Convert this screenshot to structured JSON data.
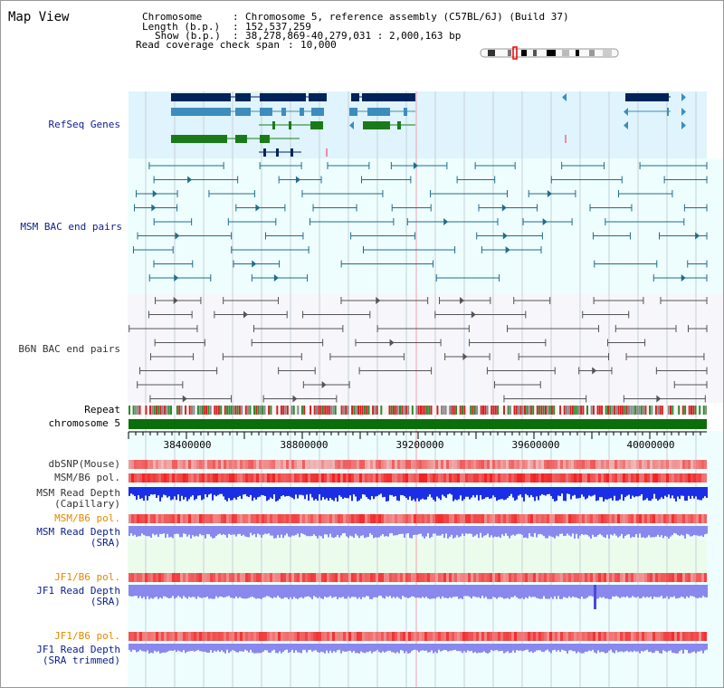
{
  "header": {
    "title": "Map View",
    "chromosome_label": "Chromosome",
    "chromosome_value": "Chromosome 5, reference assembly (C57BL/6J) (Build 37)",
    "length_label": "Length (b.p.)",
    "length_value": "152,537,259",
    "show_label": "Show (b.p.)",
    "show_value": "38,278,869-40,279,031 : 2,000,163 bp",
    "coverage_label": "Read coverage check span",
    "coverage_value": "10,000"
  },
  "tracks": {
    "refseq": "RefSeq Genes",
    "msm_bac": "MSM BAC end pairs",
    "b6n_bac": "B6N BAC end pairs",
    "repeat": "Repeat",
    "chromosome": "chromosome 5",
    "dbsnp": "dbSNP(Mouse)",
    "msm_pol": "MSM/B6 pol.",
    "msm_depth_cap_1": "MSM Read Depth",
    "msm_depth_cap_2": "(Capillary)",
    "msm_pol_sra": "MSM/B6 pol.",
    "msm_depth_sra_1": "MSM Read Depth",
    "msm_depth_sra_2": "(SRA)",
    "jf1_pol": "JF1/B6 pol.",
    "jf1_depth_1": "JF1 Read Depth",
    "jf1_depth_2": "(SRA)",
    "jf1_pol_trim": "JF1/B6 pol.",
    "jf1_trim_1": "JF1 Read Depth",
    "jf1_trim_2": "(SRA trimmed)"
  },
  "axis": {
    "ticks": [
      "38400000",
      "38800000",
      "39200000",
      "39600000",
      "40000000"
    ]
  },
  "colors": {
    "refseq_bg": "#dff4fc",
    "track_bg": "#eefefe",
    "gene_dark": "#00245a",
    "gene_mid": "#3c8dbd",
    "gene_green": "#1a7a1a",
    "msm_pair": "#1f6d8a",
    "b6n_pair": "#555555",
    "chrom_bar": "#0a6e0a",
    "depth_blue": "#1a2ee6",
    "depth_light": "#8888ee"
  }
}
